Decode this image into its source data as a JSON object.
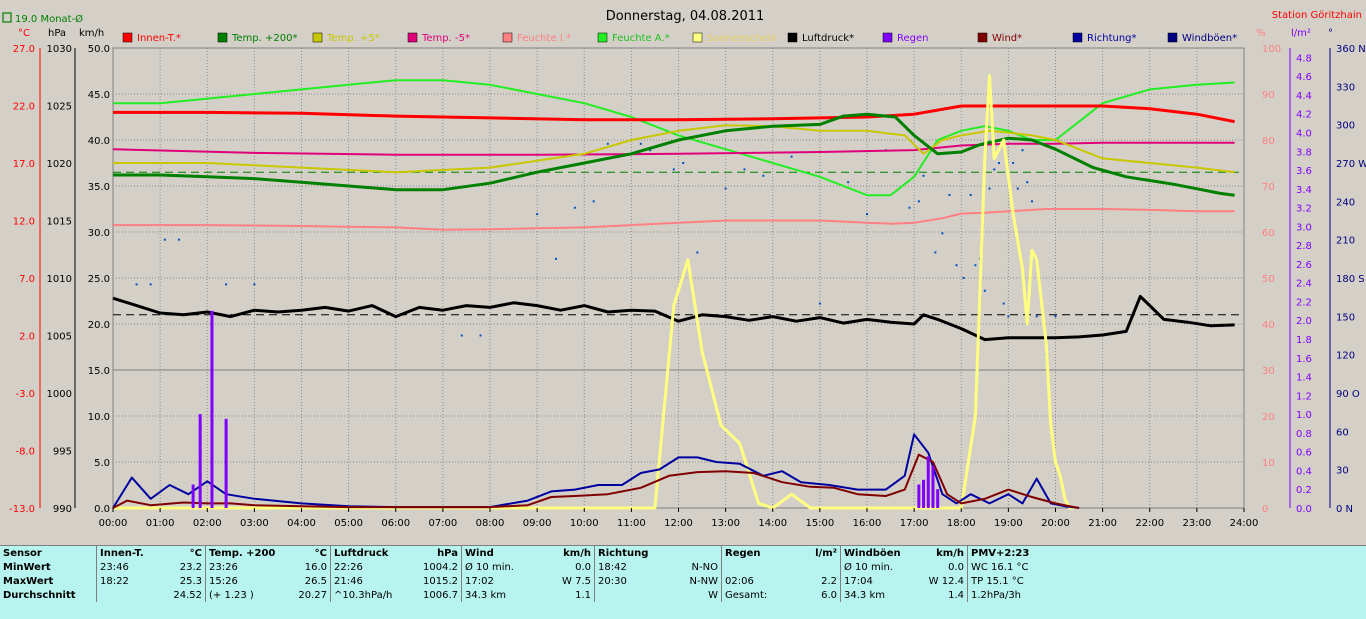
{
  "header": {
    "title": "Donnerstag, 04.08.2011",
    "station": "Station Göritzhain",
    "month_avg": "19.0 Monat-Ø"
  },
  "units": {
    "temp": "°C",
    "hpa": "hPa",
    "kmh": "km/h",
    "percent": "%",
    "rain": "l/m²",
    "deg": "°"
  },
  "legend": [
    {
      "label": "Innen-T.*",
      "color": "#ff0000"
    },
    {
      "label": "Temp. +200*",
      "color": "#008000"
    },
    {
      "label": "Temp. +5*",
      "color": "#c8c800"
    },
    {
      "label": "Temp. -5*",
      "color": "#e0007a"
    },
    {
      "label": "Feuchte I.*",
      "color": "#ff8080"
    },
    {
      "label": "Feuchte A.*",
      "color": "#22ee22"
    },
    {
      "label": "Sonnenschein",
      "color": "#ffff80"
    },
    {
      "label": "Luftdruck*",
      "color": "#000000"
    },
    {
      "label": "Regen",
      "color": "#8000ff"
    },
    {
      "label": "Wind*",
      "color": "#800000"
    },
    {
      "label": "Richtung*",
      "color": "#0000a0"
    },
    {
      "label": "Windböen*",
      "color": "#000080"
    }
  ],
  "axes": {
    "temp": [
      "27.0",
      "22.0",
      "17.0",
      "12.0",
      "7.0",
      "2.0",
      "-3.0",
      "-8.0",
      "-13.0"
    ],
    "hpa": [
      "1030",
      "1025",
      "1020",
      "1015",
      "1010",
      "1005",
      "1000",
      "995",
      "990"
    ],
    "kmh": [
      "50.0",
      "45.0",
      "40.0",
      "35.0",
      "30.0",
      "25.0",
      "20.0",
      "15.0",
      "10.0",
      "5.0",
      "0.0"
    ],
    "percent": [
      "100",
      "90",
      "80",
      "70",
      "60",
      "50",
      "40",
      "30",
      "20",
      "10",
      "0"
    ],
    "rain": [
      "4.8",
      "4.6",
      "4.4",
      "4.2",
      "4.0",
      "3.8",
      "3.6",
      "3.4",
      "3.2",
      "3.0",
      "2.8",
      "2.6",
      "2.4",
      "2.2",
      "2.0",
      "1.8",
      "1.6",
      "1.4",
      "1.2",
      "1.0",
      "0.8",
      "0.6",
      "0.4",
      "0.2",
      "0.0"
    ],
    "dir": [
      "360 N",
      "330",
      "300",
      "270 W",
      "240",
      "210",
      "180 S",
      "150",
      "120",
      "90 O",
      "60",
      "30",
      "0 N"
    ],
    "time": [
      "00:00",
      "01:00",
      "02:00",
      "03:00",
      "04:00",
      "05:00",
      "06:00",
      "07:00",
      "08:00",
      "09:00",
      "10:00",
      "11:00",
      "12:00",
      "13:00",
      "14:00",
      "15:00",
      "16:00",
      "17:00",
      "18:00",
      "19:00",
      "20:00",
      "21:00",
      "22:00",
      "23:00",
      "24:00"
    ]
  },
  "chart_data": {
    "type": "line",
    "title": "Donnerstag, 04.08.2011",
    "x_unit": "hour",
    "xlim": [
      0,
      24
    ],
    "ylim_kmh": [
      0,
      50
    ],
    "ylim_percent": [
      0,
      100
    ],
    "ylim_rain": [
      0,
      4.9
    ],
    "ylim_hpa": [
      990,
      1030
    ],
    "grid": true,
    "reference_lines": [
      {
        "kmh": 36.5,
        "color": "#008000",
        "style": "dashed"
      },
      {
        "kmh": 21.0,
        "color": "#000000",
        "style": "dashed"
      },
      {
        "kmh": 15.0,
        "color": "#808080",
        "style": "solid"
      }
    ],
    "series": [
      {
        "name": "Feuchte A.*",
        "axis": "percent",
        "color": "#22ee22",
        "width": 2,
        "x": [
          0,
          1,
          2,
          3,
          4,
          5,
          6,
          7,
          8,
          9,
          10,
          11,
          12,
          13,
          14,
          15,
          16,
          16.5,
          17,
          17.5,
          18,
          18.5,
          19,
          19.5,
          20,
          21,
          22,
          23,
          23.8
        ],
        "y": [
          88,
          88,
          89,
          90,
          91,
          92,
          93,
          93,
          92,
          90,
          88,
          85,
          81,
          78,
          75,
          72,
          68,
          68,
          72,
          80,
          82,
          83,
          82,
          80,
          80,
          88,
          91,
          92,
          92.5
        ]
      },
      {
        "name": "Innen-T.*",
        "axis": "kmh",
        "color": "#ff0000",
        "width": 3,
        "x": [
          0,
          2,
          4,
          6,
          8,
          10,
          12,
          14,
          16,
          17,
          18,
          19,
          20,
          21,
          22,
          23,
          23.8
        ],
        "y": [
          43.0,
          43.0,
          42.9,
          42.6,
          42.4,
          42.2,
          42.2,
          42.3,
          42.5,
          42.8,
          43.7,
          43.7,
          43.7,
          43.7,
          43.4,
          42.8,
          42.0
        ]
      },
      {
        "name": "Temp. -5*",
        "axis": "kmh",
        "color": "#e0007a",
        "width": 2,
        "x": [
          0,
          3,
          6,
          9,
          12,
          15,
          17,
          18,
          19,
          20,
          21,
          23,
          23.8
        ],
        "y": [
          39.0,
          38.6,
          38.4,
          38.4,
          38.5,
          38.7,
          38.9,
          39.4,
          39.6,
          39.6,
          39.7,
          39.7,
          39.7
        ]
      },
      {
        "name": "Temp. +5*",
        "axis": "kmh",
        "color": "#c8c800",
        "width": 2,
        "x": [
          0,
          2,
          4,
          6,
          8,
          10,
          11,
          12,
          13,
          14,
          15,
          16,
          16.8,
          17.2,
          17.6,
          18,
          18.6,
          19,
          19.5,
          20,
          20.5,
          21,
          22,
          23,
          23.8
        ],
        "y": [
          37.5,
          37.5,
          37.0,
          36.5,
          37.0,
          38.5,
          40.0,
          41.0,
          41.6,
          41.5,
          41.0,
          41.0,
          40.5,
          38.5,
          40.0,
          40.5,
          41.0,
          40.8,
          40.5,
          40.0,
          39.0,
          38.0,
          37.5,
          37.0,
          36.5
        ]
      },
      {
        "name": "Temp. +200*",
        "axis": "kmh",
        "color": "#008000",
        "width": 3,
        "x": [
          0,
          1,
          2,
          3,
          4,
          5,
          6,
          7,
          8,
          9,
          10,
          11,
          12,
          13,
          14,
          15,
          15.5,
          16,
          16.6,
          17,
          17.5,
          18,
          18.4,
          19,
          19.5,
          20,
          20.8,
          21.5,
          22.5,
          23.5,
          23.8
        ],
        "y": [
          36.2,
          36.2,
          36.0,
          35.8,
          35.4,
          35.0,
          34.6,
          34.6,
          35.3,
          36.5,
          37.5,
          38.5,
          40.0,
          41.0,
          41.5,
          41.7,
          42.6,
          42.8,
          42.5,
          40.5,
          38.5,
          38.7,
          39.5,
          40.2,
          40.0,
          39.0,
          37.0,
          36.0,
          35.2,
          34.2,
          34.0
        ]
      },
      {
        "name": "Feuchte I.*",
        "axis": "percent",
        "color": "#ff8080",
        "width": 2,
        "x": [
          0,
          2,
          4,
          6,
          7,
          8,
          9,
          10,
          11,
          12,
          13,
          14,
          15,
          16,
          16.5,
          17,
          17.6,
          18,
          18.5,
          19,
          19.8,
          20.5,
          21,
          22,
          23,
          23.8
        ],
        "y": [
          61.5,
          61.5,
          61.3,
          61.0,
          60.5,
          60.6,
          60.8,
          61.0,
          61.5,
          62.0,
          62.5,
          62.5,
          62.5,
          62.0,
          61.8,
          62.0,
          63.0,
          64.0,
          64.2,
          64.5,
          65.0,
          65.0,
          65.0,
          64.8,
          64.5,
          64.5
        ]
      },
      {
        "name": "Luftdruck*",
        "axis": "kmh",
        "color": "#000000",
        "width": 3,
        "x": [
          0,
          0.5,
          1,
          1.5,
          2,
          2.5,
          3,
          3.5,
          4,
          4.5,
          5,
          5.5,
          6,
          6.5,
          7,
          7.5,
          8,
          8.5,
          9,
          9.5,
          10,
          10.5,
          11,
          11.5,
          12,
          12.5,
          13,
          13.5,
          14,
          14.5,
          15,
          15.5,
          16,
          16.5,
          17,
          17.2,
          17.5,
          18,
          18.5,
          19,
          19.5,
          20,
          20.5,
          21,
          21.5,
          21.8,
          22.3,
          22.8,
          23.3,
          23.8
        ],
        "y": [
          22.8,
          22.0,
          21.2,
          21.0,
          21.3,
          20.8,
          21.5,
          21.3,
          21.5,
          21.8,
          21.4,
          22.0,
          20.8,
          21.8,
          21.5,
          22.0,
          21.8,
          22.3,
          22.0,
          21.5,
          22.0,
          21.3,
          21.5,
          21.4,
          20.3,
          21.0,
          20.8,
          20.4,
          20.8,
          20.3,
          20.7,
          20.1,
          20.5,
          20.2,
          20.0,
          21.0,
          20.5,
          19.5,
          18.3,
          18.5,
          18.5,
          18.5,
          18.6,
          18.8,
          19.2,
          23.0,
          20.5,
          20.2,
          19.8,
          19.9
        ]
      },
      {
        "name": "Sonnenschein",
        "axis": "kmh",
        "color": "#ffff80",
        "width": 3,
        "x": [
          0,
          11.5,
          11.9,
          12.2,
          12.5,
          12.9,
          13.3,
          13.7,
          14.0,
          14.4,
          14.8,
          15.0,
          18.0,
          18.3,
          18.5,
          18.6,
          18.7,
          18.9,
          19.1,
          19.3,
          19.4,
          19.5,
          19.6,
          19.8,
          19.9,
          20.0,
          20.1,
          20.2,
          20.3,
          20.4
        ],
        "y": [
          0,
          0,
          22.0,
          27.0,
          17.0,
          9.0,
          7.0,
          0.5,
          0,
          1.5,
          0,
          0,
          0,
          10.0,
          38.0,
          47.0,
          38.0,
          40.0,
          32.0,
          26.0,
          20.0,
          28.0,
          27.0,
          18.0,
          9.0,
          5.0,
          3.5,
          1.0,
          0,
          0
        ]
      },
      {
        "name": "Windböen*",
        "axis": "kmh",
        "color": "#0000a0",
        "width": 2,
        "x": [
          0,
          0.4,
          0.8,
          1.2,
          1.6,
          2,
          2.4,
          3,
          4,
          5,
          6,
          7,
          8,
          8.8,
          9.3,
          9.8,
          10.3,
          10.8,
          11.2,
          11.6,
          12,
          12.4,
          12.8,
          13.3,
          13.8,
          14.2,
          14.6,
          15.2,
          15.8,
          16.4,
          16.8,
          17,
          17.3,
          17.6,
          17.9,
          18.2,
          18.6,
          19,
          19.3,
          19.6,
          19.9,
          20.2,
          20.5
        ],
        "y": [
          0,
          3.3,
          1.0,
          2.5,
          1.5,
          2.9,
          1.5,
          1.0,
          0.5,
          0.2,
          0.1,
          0.1,
          0.1,
          0.8,
          1.8,
          2.0,
          2.5,
          2.5,
          3.8,
          4.2,
          5.5,
          5.5,
          5.0,
          4.8,
          3.5,
          4.0,
          2.8,
          2.5,
          2.0,
          2.0,
          3.5,
          8.0,
          6.0,
          1.5,
          0.5,
          1.5,
          0.5,
          1.5,
          0.5,
          3.2,
          0.5,
          0.2,
          0
        ]
      },
      {
        "name": "Wind*",
        "axis": "kmh",
        "color": "#800000",
        "width": 2,
        "x": [
          0,
          0.3,
          0.8,
          1.5,
          2,
          2.5,
          3,
          4,
          5,
          6,
          7,
          8,
          8.8,
          9.3,
          9.8,
          10.5,
          11.2,
          11.8,
          12.4,
          13,
          13.6,
          14.2,
          14.8,
          15.3,
          15.8,
          16.4,
          16.8,
          17.1,
          17.4,
          17.7,
          18.0,
          18.5,
          19,
          19.5,
          20,
          20.3,
          20.5
        ],
        "y": [
          0,
          0.8,
          0.3,
          0.6,
          0.5,
          0.5,
          0.3,
          0.2,
          0.1,
          0.1,
          0.1,
          0.1,
          0.3,
          1.2,
          1.3,
          1.5,
          2.2,
          3.5,
          3.9,
          4.0,
          3.8,
          2.8,
          2.3,
          2.2,
          1.5,
          1.3,
          2.0,
          5.8,
          5.0,
          1.5,
          0.5,
          1.0,
          2.0,
          1.2,
          0.5,
          0.2,
          0
        ]
      },
      {
        "name": "Regen",
        "axis": "rain",
        "color": "#8000ff",
        "type": "bar",
        "x": [
          1.7,
          1.85,
          2.1,
          2.4,
          17.1,
          17.2,
          17.3,
          17.4,
          17.5
        ],
        "y": [
          0.25,
          1.0,
          2.1,
          0.95,
          0.25,
          0.3,
          0.55,
          0.45,
          0.2
        ]
      }
    ],
    "direction_points": {
      "name": "Richtung*",
      "x": [
        0.5,
        0.8,
        1.1,
        1.4,
        1.8,
        2.4,
        3.0,
        7.4,
        7.8,
        9.0,
        9.4,
        9.8,
        10.2,
        10.5,
        11.2,
        11.4,
        11.9,
        12.1,
        12.4,
        13.0,
        13.4,
        13.8,
        14.4,
        15.0,
        15.6,
        16.0,
        16.4,
        16.9,
        17.1,
        17.2,
        17.3,
        17.45,
        17.6,
        17.75,
        17.9,
        18.05,
        18.2,
        18.3,
        18.4,
        18.5,
        18.6,
        18.7,
        18.8,
        18.9,
        19.0,
        19.1,
        19.2,
        19.3,
        19.4,
        19.5,
        19.6,
        19.8,
        20.0
      ],
      "y": [
        175,
        175,
        210,
        210,
        260,
        175,
        175,
        135,
        135,
        230,
        195,
        235,
        240,
        285,
        285,
        280,
        265,
        270,
        200,
        250,
        265,
        260,
        275,
        160,
        255,
        230,
        280,
        235,
        240,
        260,
        225,
        200,
        215,
        245,
        190,
        180,
        245,
        190,
        195,
        170,
        250,
        265,
        270,
        160,
        150,
        270,
        250,
        280,
        255,
        240,
        150,
        120,
        150
      ]
    },
    "summary": {
      "Innen-T": {
        "min": [
          23.2,
          "23:46"
        ],
        "max": [
          25.3,
          "18:22"
        ],
        "avg": 24.52
      },
      "Temp. +200": {
        "min": [
          16.0,
          "23:26"
        ],
        "max": [
          26.5,
          "15:26"
        ],
        "avg": 20.27,
        "trend": "+ 1.23"
      },
      "Luftdruck": {
        "min": [
          1004.2,
          "22:26"
        ],
        "max": [
          1015.2,
          "21:46"
        ],
        "avg": 1006.7
      },
      "Wind": {
        "min": 0.0,
        "max": 7.5,
        "avg": 1.1
      },
      "Regen": {
        "max": [
          2.2,
          "02:06"
        ],
        "total": 6.0
      },
      "Windböen": {
        "min": 0.0,
        "max": [
          12.4,
          "17:04"
        ],
        "avg": 1.4
      }
    }
  },
  "summary_table": {
    "rows": [
      {
        "label": "Sensor",
        "c": [
          "Innen-T.",
          "°C",
          "Temp. +200",
          "°C",
          "Luftdruck",
          "hPa",
          "Wind",
          "km/h",
          "Richtung",
          "",
          "Regen",
          "l/m²",
          "Windböen",
          "km/h",
          "PMV+2:23"
        ]
      },
      {
        "label": "MinWert",
        "c": [
          "23:46",
          "23.2",
          "23:26",
          "16.0",
          "22:26",
          "1004.2",
          "Ø 10 min.",
          "0.0",
          "18:42",
          "N-NO",
          "",
          "",
          "Ø 10 min.",
          "0.0",
          "WC 16.1 °C"
        ]
      },
      {
        "label": "MaxWert",
        "c": [
          "18:22",
          "25.3",
          "15:26",
          "26.5",
          "21:46",
          "1015.2",
          "17:02",
          "W 7.5",
          "20:30",
          "N-NW",
          "02:06",
          "2.2",
          "17:04",
          "W 12.4",
          "TP 15.1 °C"
        ]
      },
      {
        "label": "Durchschnitt",
        "c": [
          "",
          "24.52",
          "(+ 1.23 )",
          "20.27",
          "^10.3hPa/h",
          "1006.7",
          "34.3 km",
          "1.1",
          "",
          "W",
          "Gesamt:",
          "6.0",
          "34.3 km",
          "1.4",
          "1.2hPa/3h"
        ]
      }
    ]
  }
}
